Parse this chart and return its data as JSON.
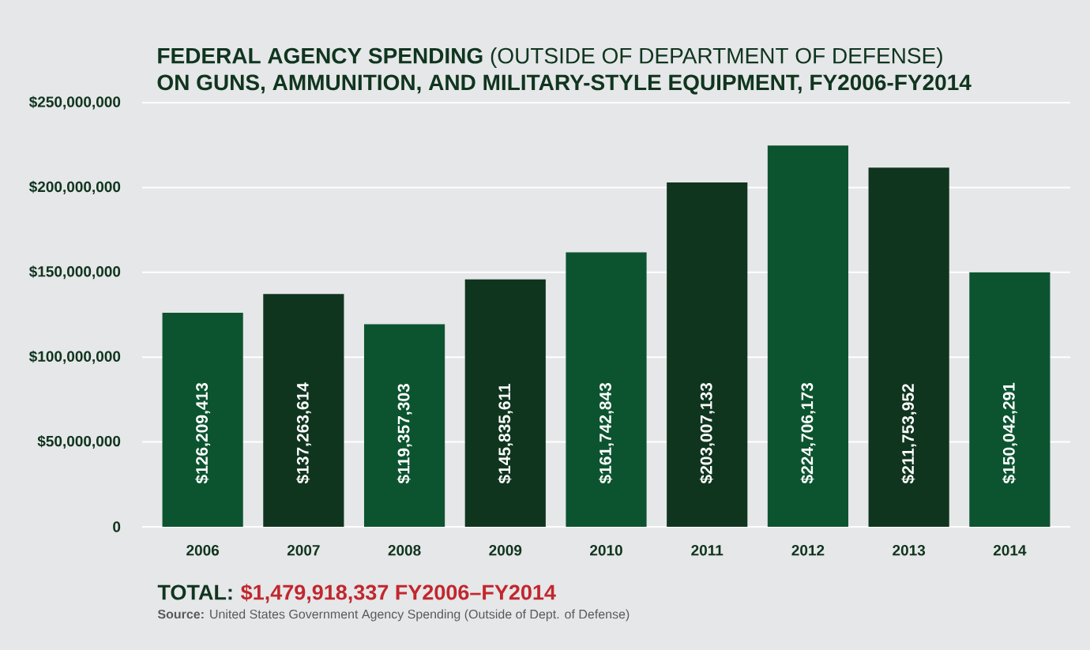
{
  "chart_data": {
    "type": "bar",
    "title": "**FEDERAL AGENCY SPENDING** (OUTSIDE OF DEPARTMENT OF DEFENSE)",
    "subtitle": "ON GUNS, AMMUNITION, AND MILITARY-STYLE EQUIPMENT, FY2006-FY2014",
    "categories": [
      "2006",
      "2007",
      "2008",
      "2009",
      "2010",
      "2011",
      "2012",
      "2013",
      "2014"
    ],
    "values": [
      126209413,
      137263614,
      119357303,
      145835611,
      161742843,
      203007133,
      224706173,
      211753952,
      150042291
    ],
    "value_labels": [
      "$126,209,413",
      "$137,263,614",
      "$119,357,303",
      "$145,835,611",
      "$161,742,843",
      "$203,007,133",
      "$224,706,173",
      "$211,753,952",
      "$150,042,291"
    ],
    "colors": [
      "#0c5430",
      "#10351f",
      "#0c5430",
      "#10351f",
      "#0c5430",
      "#10351f",
      "#0c5430",
      "#10351f",
      "#0c5430"
    ],
    "ylim": [
      0,
      250000000
    ],
    "yticks": [
      0,
      {
        "value": 50000000,
        "label": "$50,000,000"
      },
      {
        "value": 100000000,
        "label": "$100,000,000"
      },
      {
        "value": 150000000,
        "label": "$150,000,000"
      },
      {
        "value": 200000000,
        "label": "$200,000,000"
      },
      {
        "value": 250000000,
        "label": "$250,000,000"
      }
    ],
    "grid": "y",
    "annotations": [
      "TOTAL:",
      "$1,479,918,337 FY2006–FY2014",
      "**Source:** United States Government Agency Spending (Outside of Dept. of Defense)"
    ]
  }
}
